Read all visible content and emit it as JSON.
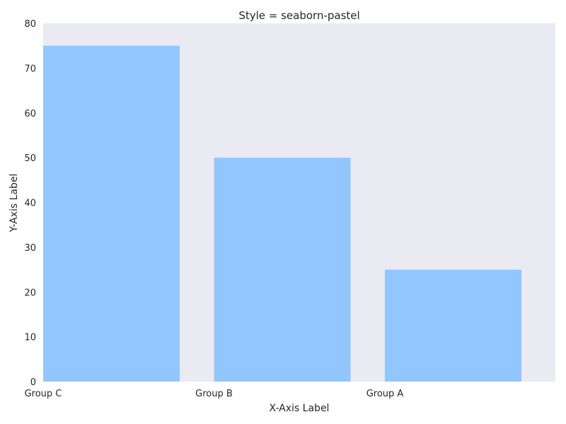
{
  "chart_data": {
    "type": "bar",
    "title": "Style = seaborn-pastel",
    "xlabel": "X-Axis Label",
    "ylabel": "Y-Axis Label",
    "categories": [
      "Group C",
      "Group B",
      "Group A"
    ],
    "values": [
      75,
      50,
      25
    ],
    "ylim": [
      0,
      80
    ],
    "yticks": [
      0,
      10,
      20,
      30,
      40,
      50,
      60,
      70,
      80
    ],
    "grid": false,
    "colors": {
      "bar": "#92c6ff",
      "plot_background": "#eaeaf2",
      "text": "#262626"
    }
  }
}
